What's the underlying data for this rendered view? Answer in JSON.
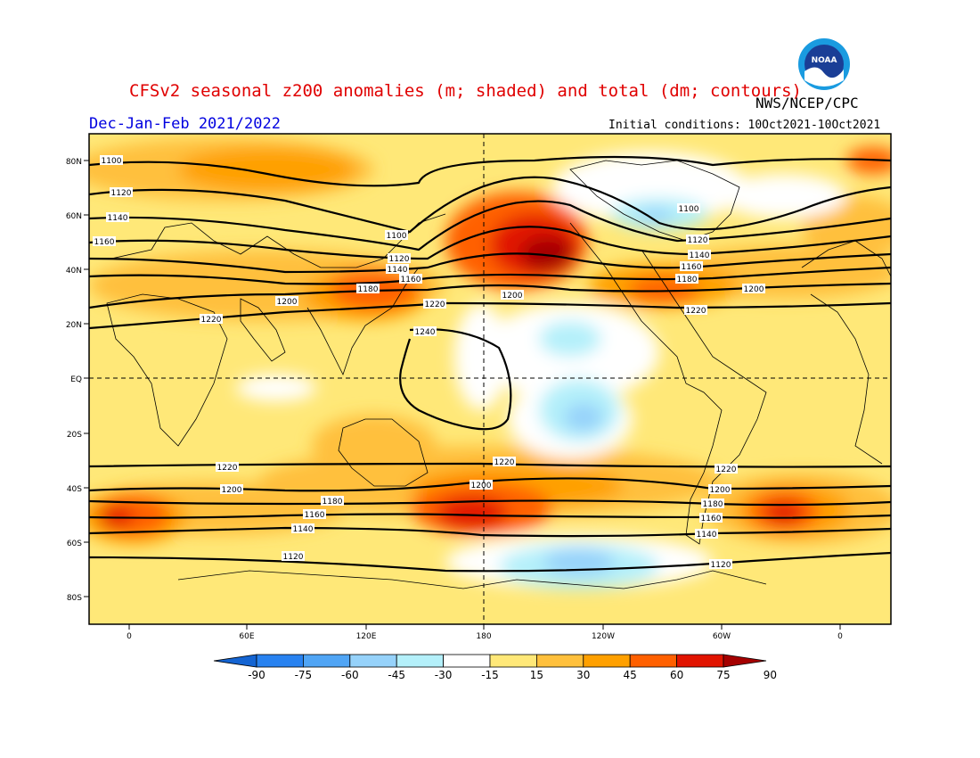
{
  "title": "CFSv2 seasonal z200 anomalies (m; shaded) and total (dm; contours)",
  "credit": "NWS/NCEP/CPC",
  "season": "Dec-Jan-Feb 2021/2022",
  "initial_conditions": "Initial conditions: 10Oct2021-10Oct2021",
  "logo_text": "NOAA",
  "map": {
    "lat_labels": [
      "80N",
      "60N",
      "40N",
      "20N",
      "EQ",
      "20S",
      "40S",
      "60S",
      "80S"
    ],
    "lon_labels": [
      "0",
      "60E",
      "120E",
      "180",
      "120W",
      "60W",
      "0"
    ],
    "reference_lines": [
      "equator",
      "dateline"
    ]
  },
  "contours": [
    {
      "value": 1100,
      "label": "1100"
    },
    {
      "value": 1120,
      "label": "1120"
    },
    {
      "value": 1140,
      "label": "1140"
    },
    {
      "value": 1160,
      "label": "1160"
    },
    {
      "value": 1180,
      "label": "1180"
    },
    {
      "value": 1200,
      "label": "1200"
    },
    {
      "value": 1220,
      "label": "1220"
    },
    {
      "value": 1240,
      "label": "1240"
    }
  ],
  "colorbar": {
    "labels": [
      "-90",
      "-75",
      "-60",
      "-45",
      "-30",
      "-15",
      "15",
      "30",
      "45",
      "60",
      "75",
      "90"
    ],
    "colors": [
      "#1464d2",
      "#2882f0",
      "#50a5f5",
      "#96d2fa",
      "#b4f0fa",
      "#ffffff",
      "#ffe878",
      "#ffc03c",
      "#ffa000",
      "#ff6000",
      "#e11400",
      "#a50000"
    ]
  }
}
